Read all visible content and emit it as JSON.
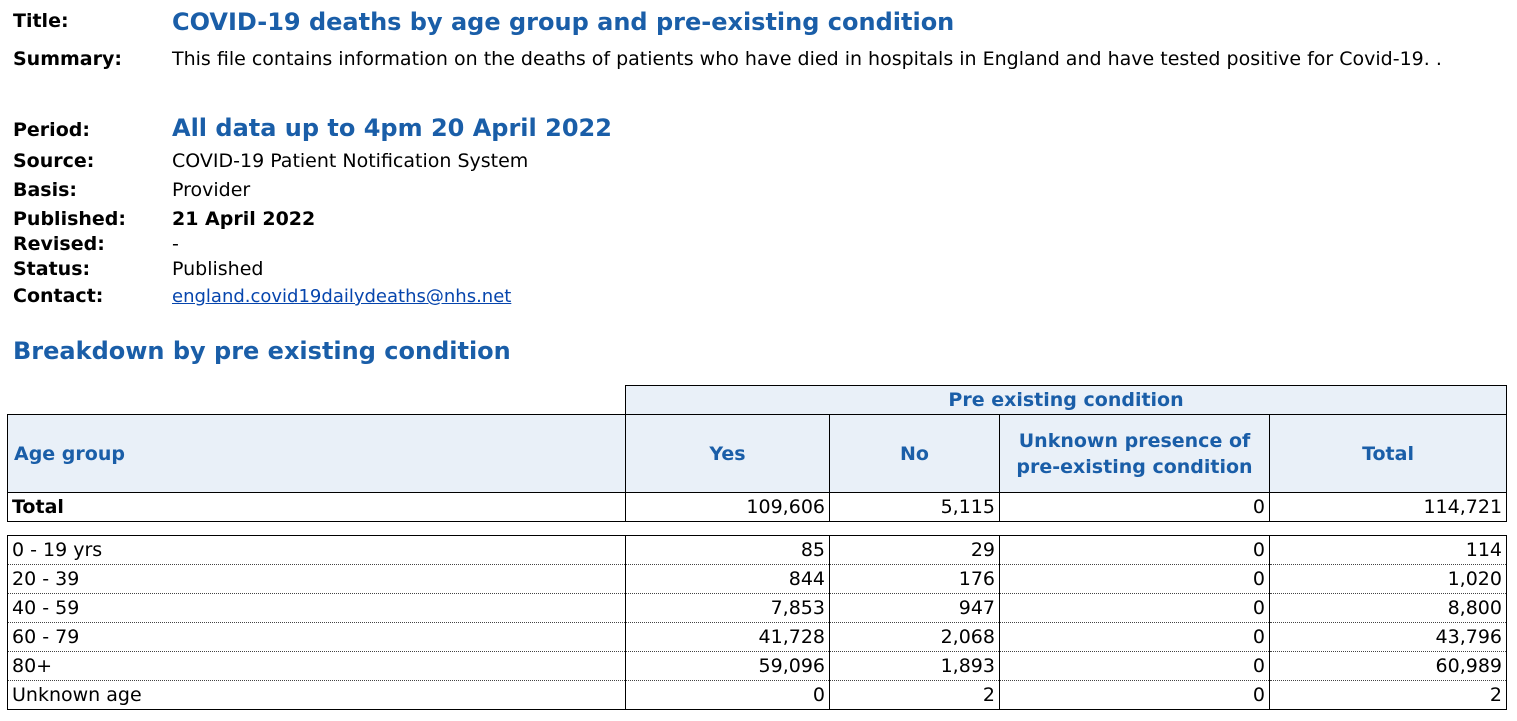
{
  "meta": {
    "title_label": "Title:",
    "title": "COVID-19 deaths by age group and pre-existing condition",
    "summary_label": "Summary:",
    "summary": "This file contains information on the deaths of patients who have died in hospitals in England and have tested positive for Covid-19. .",
    "period_label": "Period:",
    "period": "All data up to 4pm 20 April 2022",
    "source_label": "Source:",
    "source": "COVID-19 Patient Notification System",
    "basis_label": "Basis:",
    "basis": "Provider",
    "published_label": "Published:",
    "published": "21 April 2022",
    "revised_label": "Revised:",
    "revised": "-",
    "status_label": "Status:",
    "status": "Published",
    "contact_label": "Contact:",
    "contact": "england.covid19dailydeaths@nhs.net"
  },
  "section_title": "Breakdown by pre existing condition",
  "table": {
    "super_header": "Pre existing condition",
    "headers": {
      "age": "Age group",
      "yes": "Yes",
      "no": "No",
      "unknown": "Unknown presence of pre-existing condition",
      "total": "Total"
    },
    "total_row": {
      "label": "Total",
      "yes": "109,606",
      "no": "5,115",
      "unknown": "0",
      "total": "114,721"
    },
    "rows": [
      {
        "label": "0 - 19 yrs",
        "yes": "85",
        "no": "29",
        "unknown": "0",
        "total": "114"
      },
      {
        "label": "20 - 39",
        "yes": "844",
        "no": "176",
        "unknown": "0",
        "total": "1,020"
      },
      {
        "label": "40 - 59",
        "yes": "7,853",
        "no": "947",
        "unknown": "0",
        "total": "8,800"
      },
      {
        "label": "60 - 79",
        "yes": "41,728",
        "no": "2,068",
        "unknown": "0",
        "total": "43,796"
      },
      {
        "label": "80+",
        "yes": "59,096",
        "no": "1,893",
        "unknown": "0",
        "total": "60,989"
      },
      {
        "label": "Unknown age",
        "yes": "0",
        "no": "2",
        "unknown": "0",
        "total": "2"
      }
    ]
  },
  "colors": {
    "accent": "#1a5ea8",
    "header_bg": "#e9f0f8",
    "link": "#0645ad"
  }
}
